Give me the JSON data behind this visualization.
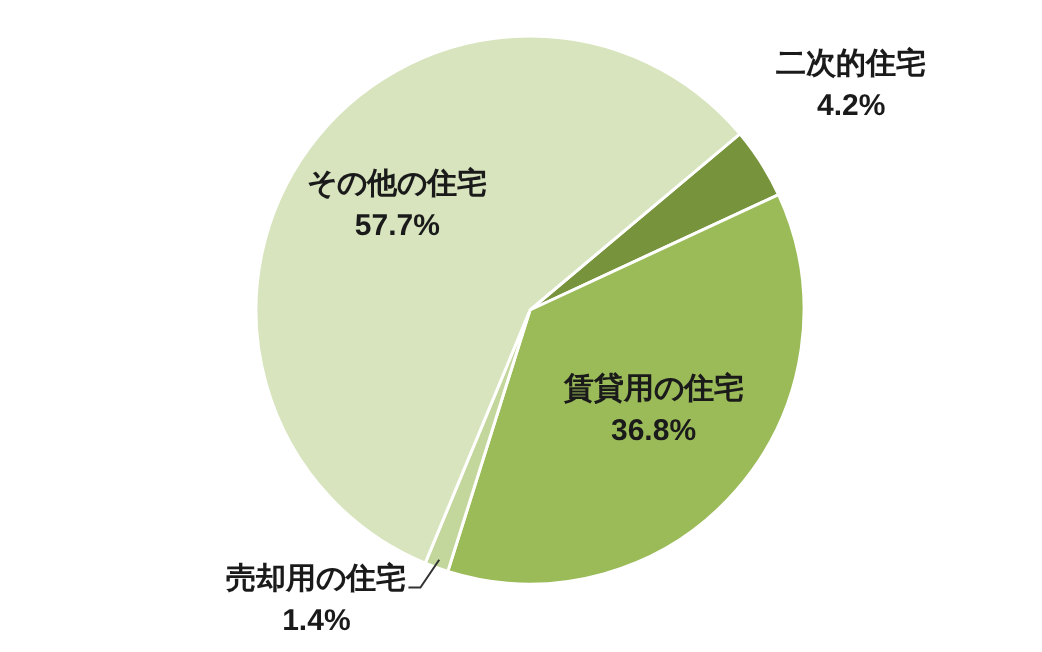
{
  "chart_data": {
    "type": "pie",
    "categories": [
      "二次的住宅",
      "賃貸用の住宅",
      "売却用の住宅",
      "その他の住宅"
    ],
    "values": [
      4.2,
      36.8,
      1.4,
      57.7
    ],
    "colors": [
      "#77933c",
      "#9bbb59",
      "#c3d69b",
      "#d7e4bd"
    ],
    "value_labels": [
      "4.2%",
      "36.8%",
      "1.4%",
      "57.7%"
    ]
  }
}
